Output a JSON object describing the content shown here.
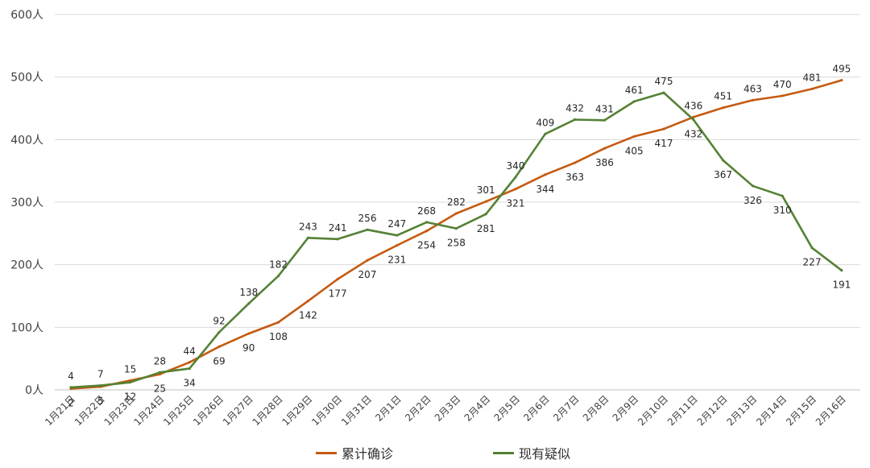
{
  "chart_data": {
    "type": "line",
    "title": "",
    "xlabel": "",
    "ylabel": "",
    "ylim": [
      0,
      600
    ],
    "y_ticks": [
      "0人",
      "100人",
      "200人",
      "300人",
      "400人",
      "500人",
      "600人"
    ],
    "grid": "horizontal",
    "legend_position": "bottom",
    "categories": [
      "1月21日",
      "1月22日",
      "1月23日",
      "1月24日",
      "1月25日",
      "1月26日",
      "1月27日",
      "1月28日",
      "1月29日",
      "1月30日",
      "1月31日",
      "2月1日",
      "2月2日",
      "2月3日",
      "2月4日",
      "2月5日",
      "2月6日",
      "2月7日",
      "2月8日",
      "2月9日",
      "2月10日",
      "2月11日",
      "2月12日",
      "2月13日",
      "2月14日",
      "2月15日",
      "2月16日"
    ],
    "series": [
      {
        "name": "累计确诊",
        "color": "#c55a11",
        "values": [
          2,
          5,
          15,
          25,
          44,
          69,
          90,
          108,
          142,
          177,
          207,
          231,
          254,
          282,
          301,
          321,
          344,
          363,
          386,
          405,
          417,
          436,
          451,
          463,
          470,
          481,
          495
        ]
      },
      {
        "name": "现有疑似",
        "color": "#548235",
        "values": [
          4,
          7,
          12,
          28,
          34,
          92,
          138,
          182,
          243,
          241,
          256,
          247,
          268,
          258,
          281,
          340,
          409,
          432,
          431,
          461,
          475,
          432,
          367,
          326,
          310,
          227,
          191
        ]
      }
    ]
  }
}
